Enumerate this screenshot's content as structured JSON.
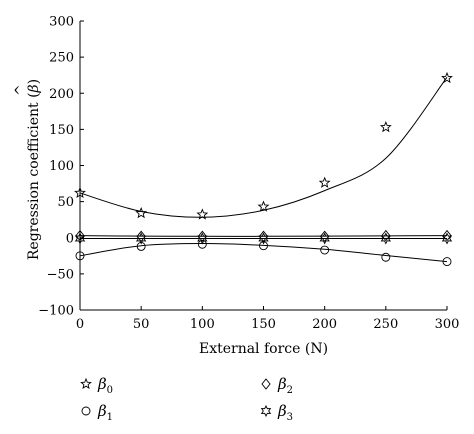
{
  "chart_data": {
    "type": "scatter",
    "xlabel": "External force (N)",
    "ylabel": "Regression coefficient (",
    "ylabel_symbol": "β",
    "ylabel_hat": "^",
    "ylabel_close": ")",
    "xlim": [
      0,
      300
    ],
    "ylim": [
      -100,
      300
    ],
    "xticks": [
      0,
      50,
      100,
      150,
      200,
      250,
      300
    ],
    "yticks": [
      -100,
      -50,
      0,
      50,
      100,
      150,
      200,
      250,
      300
    ],
    "grid": false,
    "legend_position": "bottom",
    "x": [
      0,
      50,
      100,
      150,
      200,
      250,
      300
    ],
    "series": [
      {
        "name": "β",
        "subscript": "0",
        "marker": "star5",
        "values": [
          62,
          34,
          32,
          43,
          76,
          153,
          221
        ],
        "fit": [
          62.0,
          36.4,
          28.4,
          38.0,
          65.2,
          110.0,
          222.0
        ]
      },
      {
        "name": "β",
        "subscript": "1",
        "marker": "circle",
        "values": [
          -25,
          -12,
          -9,
          -11,
          -17,
          -27,
          -33
        ],
        "fit": [
          -25.0,
          -11.0,
          -8.0,
          -10.5,
          -16.0,
          -24.5,
          -33.0
        ]
      },
      {
        "name": "β",
        "subscript": "2",
        "marker": "diamond",
        "values": [
          3,
          2,
          2,
          2,
          2,
          3,
          3
        ],
        "fit": [
          3.0,
          2.2,
          2.0,
          2.0,
          2.2,
          2.6,
          3.0
        ]
      },
      {
        "name": "β",
        "subscript": "3",
        "marker": "star6",
        "values": [
          -1,
          -1,
          -1,
          -1,
          -1,
          -1,
          -1
        ],
        "fit": [
          -1.0,
          -1.0,
          -1.0,
          -1.0,
          -1.0,
          -1.0,
          -1.0
        ]
      }
    ]
  }
}
